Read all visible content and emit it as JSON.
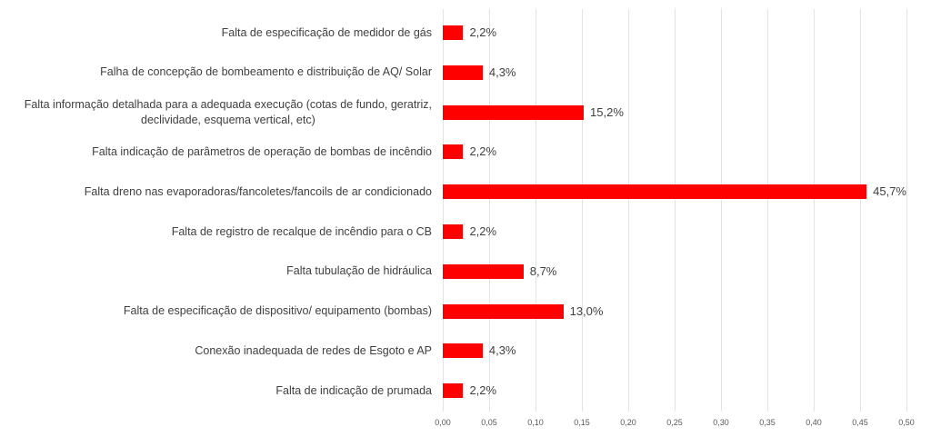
{
  "chart_data": {
    "type": "bar",
    "orientation": "horizontal",
    "title": "",
    "xlabel": "",
    "ylabel": "",
    "xlim": [
      0,
      0.5
    ],
    "grid": true,
    "bar_color": "#ff0000",
    "x_ticks": [
      "0,00",
      "0,05",
      "0,10",
      "0,15",
      "0,20",
      "0,25",
      "0,30",
      "0,35",
      "0,40",
      "0,45",
      "0,50"
    ],
    "categories": [
      "Falta de especificação de medidor de gás",
      "Falha de concepção de bombeamento e distribuição de AQ/ Solar",
      "Falta informação detalhada para a adequada execução (cotas de fundo, geratriz,\ndeclividade, esquema vertical, etc)",
      "Falta indicação de parâmetros de operação de bombas de incêndio",
      "Falta dreno nas evaporadoras/fancoletes/fancoils de ar condicionado",
      "Falta de registro de recalque de incêndio para o CB",
      "Falta tubulação de hidráulica",
      "Falta de especificação de dispositivo/ equipamento (bombas)",
      "Conexão inadequada de redes de Esgoto e AP",
      "Falta de indicação de prumada"
    ],
    "values": [
      0.022,
      0.043,
      0.152,
      0.022,
      0.457,
      0.022,
      0.087,
      0.13,
      0.043,
      0.022
    ],
    "data_labels": [
      "2,2%",
      "4,3%",
      "15,2%",
      "2,2%",
      "45,7%",
      "2,2%",
      "8,7%",
      "13,0%",
      "4,3%",
      "2,2%"
    ]
  }
}
